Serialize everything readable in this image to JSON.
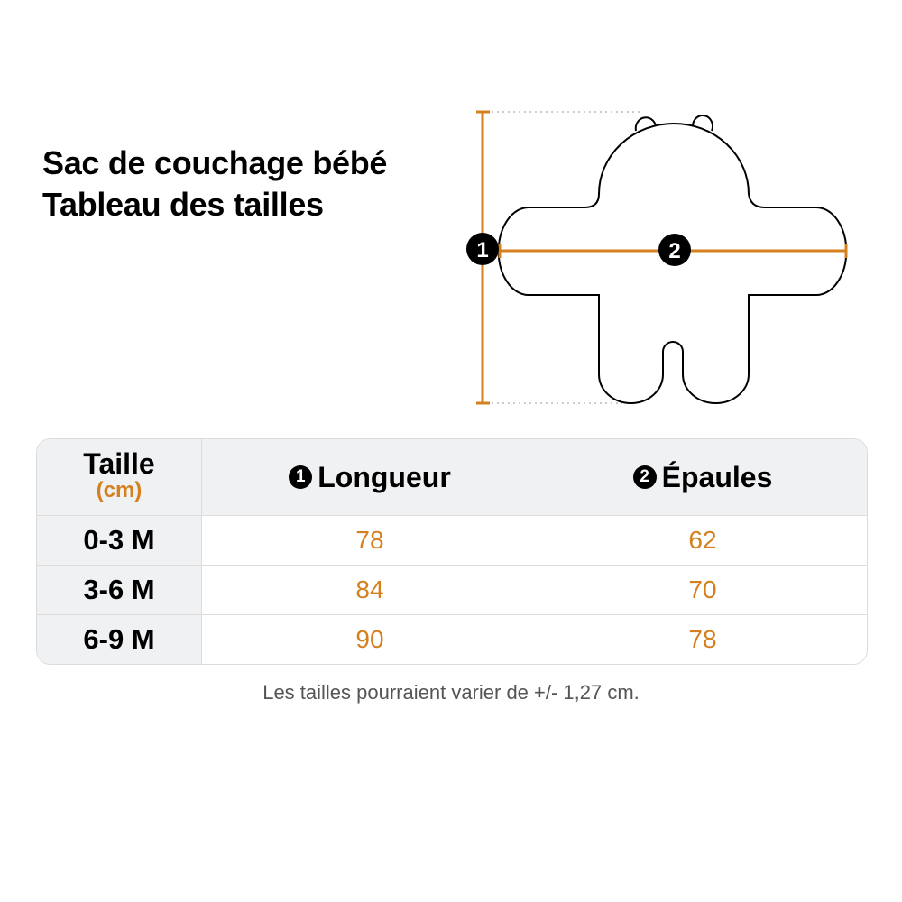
{
  "title": {
    "line1": "Sac de couchage bébé",
    "line2": "Tableau des tailles"
  },
  "diagram": {
    "marker1": "1",
    "marker2": "2",
    "accent_color": "#d4801f"
  },
  "table": {
    "header": {
      "size_label": "Taille",
      "unit": "(cm)",
      "col1_num": "1",
      "col1": "Longueur",
      "col2_num": "2",
      "col2": "Épaules"
    },
    "rows": [
      {
        "size": "0-3 M",
        "longueur": "78",
        "epaules": "62"
      },
      {
        "size": "3-6 M",
        "longueur": "84",
        "epaules": "70"
      },
      {
        "size": "6-9 M",
        "longueur": "90",
        "epaules": "78"
      }
    ]
  },
  "note": "Les tailles pourraient varier de +/- 1,27 cm."
}
